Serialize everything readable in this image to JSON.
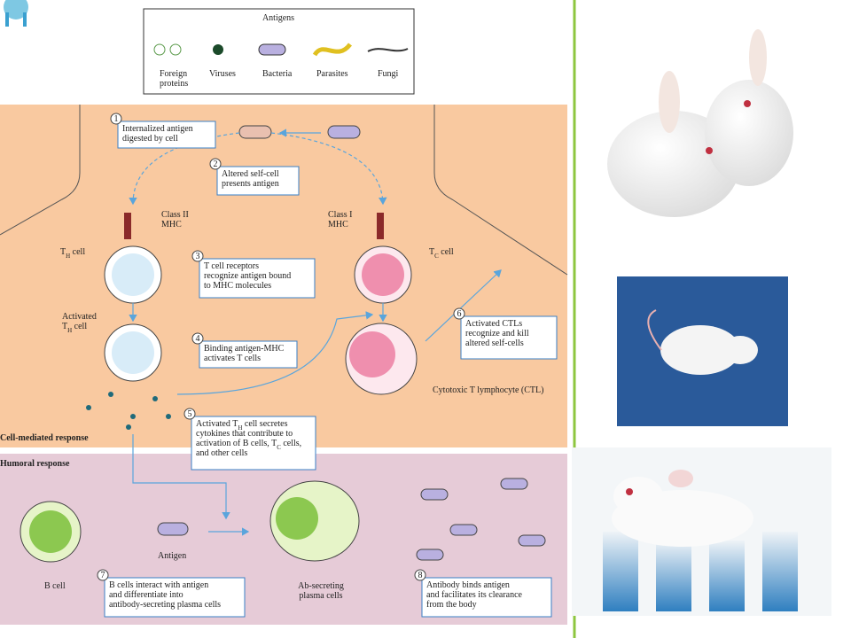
{
  "legend": {
    "title": "Antigens",
    "items": [
      [
        "Foreign",
        "proteins"
      ],
      [
        "Viruses"
      ],
      [
        "Bacteria"
      ],
      [
        "Parasites"
      ],
      [
        "Fungi"
      ]
    ]
  },
  "steps": [
    {
      "num": "1",
      "lines": [
        [
          "Internalized antigen"
        ],
        [
          "digested by cell"
        ]
      ]
    },
    {
      "num": "2",
      "lines": [
        [
          "Altered self-cell"
        ],
        [
          "presents antigen"
        ]
      ]
    },
    {
      "num": "3",
      "lines": [
        [
          "T cell receptors"
        ],
        [
          "recognize antigen bound"
        ],
        [
          "to MHC molecules"
        ]
      ]
    },
    {
      "num": "4",
      "lines": [
        [
          "Binding antigen-MHC"
        ],
        [
          "activates T cells"
        ]
      ]
    },
    {
      "num": "5",
      "lines": [
        [
          "Activated T",
          {
            "sub": "H"
          },
          " cell secretes"
        ],
        [
          "cytokines that contribute to"
        ],
        [
          "activation of B cells, T",
          {
            "sub": "C"
          },
          " cells,"
        ],
        [
          "and other cells"
        ]
      ]
    },
    {
      "num": "6",
      "lines": [
        [
          "Activated CTLs"
        ],
        [
          "recognize and kill"
        ],
        [
          "altered self-cells"
        ]
      ]
    },
    {
      "num": "7",
      "lines": [
        [
          "B cells interact with antigen"
        ],
        [
          "and differentiate into"
        ],
        [
          "antibody-secreting plasma cells"
        ]
      ]
    },
    {
      "num": "8",
      "lines": [
        [
          "Antibody binds antigen"
        ],
        [
          "and facilitates its clearance"
        ],
        [
          "from the body"
        ]
      ]
    }
  ],
  "labels": [
    {
      "lines": [
        [
          "Class II"
        ],
        [
          "MHC"
        ]
      ]
    },
    {
      "lines": [
        [
          "Class I"
        ],
        [
          "MHC"
        ]
      ]
    },
    {
      "lines": [
        [
          "T",
          {
            "sub": "H"
          },
          " cell"
        ]
      ]
    },
    {
      "lines": [
        [
          "T",
          {
            "sub": "C"
          },
          " cell"
        ]
      ]
    },
    {
      "lines": [
        [
          "Activated"
        ],
        [
          "T",
          {
            "sub": "H"
          },
          " cell"
        ]
      ]
    },
    {
      "lines": [
        [
          "Cytotoxic T lymphocyte (CTL)"
        ]
      ]
    },
    {
      "lines": [
        [
          "Cell-mediated response"
        ]
      ]
    },
    {
      "lines": [
        [
          "Humoral response"
        ]
      ]
    },
    {
      "lines": [
        [
          "B cell"
        ]
      ]
    },
    {
      "lines": [
        [
          "Antigen"
        ]
      ]
    },
    {
      "lines": [
        [
          "Ab-secreting"
        ],
        [
          "plasma cells"
        ]
      ]
    }
  ]
}
